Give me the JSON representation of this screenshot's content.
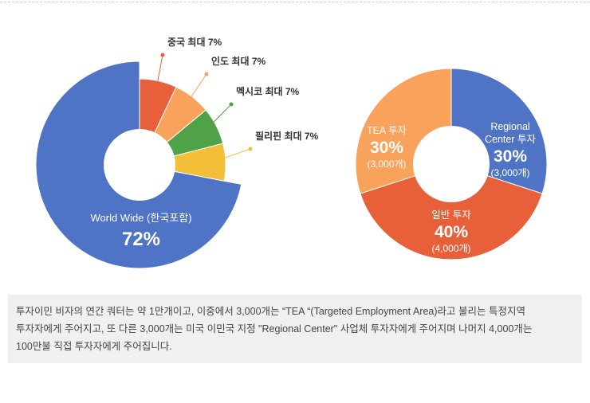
{
  "colors": {
    "blue": "#4f74c6",
    "red": "#e8603a",
    "light_orange": "#f9a25c",
    "green": "#4fa247",
    "yellow": "#f3bf38",
    "callout_dark": "#333333"
  },
  "chart_data": [
    {
      "type": "pie",
      "slices": [
        {
          "label": "중국 최대 7%",
          "value": 7,
          "color": "#e8603a"
        },
        {
          "label": "인도 최대 7%",
          "value": 7,
          "color": "#f9a25c"
        },
        {
          "label": "멕시코 최대 7%",
          "value": 7,
          "color": "#4fa247"
        },
        {
          "label": "필리핀 최대 7%",
          "value": 7,
          "color": "#f3bf38"
        },
        {
          "label": "World Wide (한국포함)",
          "value": 72,
          "value_text": "72%",
          "color": "#4f74c6"
        }
      ]
    },
    {
      "type": "pie",
      "slices": [
        {
          "label_lines": [
            "Regional",
            "Center 투자"
          ],
          "value": 30,
          "value_text": "30%",
          "amount": "(3,000개)",
          "color": "#4f74c6"
        },
        {
          "label_lines": [
            "일반 투자"
          ],
          "value": 40,
          "value_text": "40%",
          "amount": "(4,000개)",
          "color": "#e8603a"
        },
        {
          "label_lines": [
            "TEA 투자"
          ],
          "value": 30,
          "value_text": "30%",
          "amount": "(3,000개)",
          "color": "#f9a25c"
        }
      ]
    }
  ],
  "caption": {
    "line1": "투자이민 비자의 연간 쿼터는 약 1만개이고, 이중에서 3,000개는 “TEA “(Targeted Employment Area)라고 불리는 특정지역",
    "line2": "투자자에게 주어지고, 또 다른 3,000개는 미국 이민국 지정 \"Regional Center\" 사업체 투자자에게 주어지며 나머지 4,000개는",
    "line3": "100만불 직접 투자자에게 주어집니다."
  }
}
